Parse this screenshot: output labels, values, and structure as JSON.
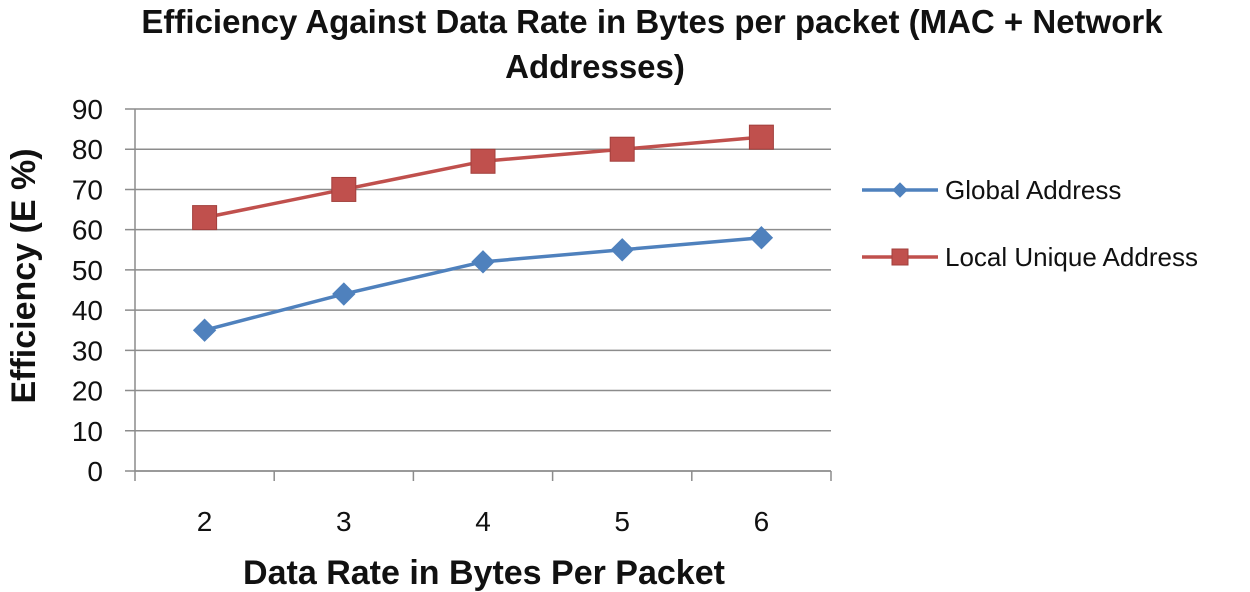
{
  "chart_data": {
    "type": "line",
    "title": "Efficiency Against Data Rate in Bytes per packet (MAC + Network Addresses)",
    "xlabel": "Data Rate in Bytes Per Packet",
    "ylabel": "Efficiency (E %)",
    "categories": [
      "2",
      "3",
      "4",
      "5",
      "6"
    ],
    "ylim": [
      0,
      90
    ],
    "yticks": [
      "0",
      "10",
      "20",
      "30",
      "40",
      "50",
      "60",
      "70",
      "80",
      "90"
    ],
    "grid": true,
    "legend_position": "right",
    "series": [
      {
        "name": "Global Address",
        "values": [
          35,
          44,
          52,
          55,
          58
        ],
        "color": "#4f81bd",
        "marker": "diamond"
      },
      {
        "name": "Local Unique Address",
        "values": [
          63,
          70,
          77,
          80,
          83
        ],
        "color": "#c0504d",
        "marker": "square"
      }
    ]
  }
}
